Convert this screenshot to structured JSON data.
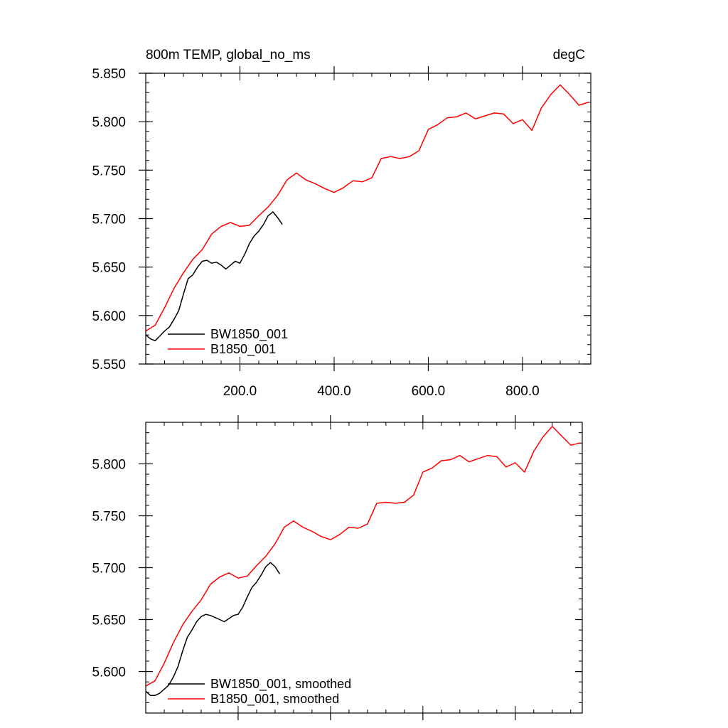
{
  "colors": {
    "bw": "#000000",
    "b": "#ff0000"
  },
  "chart_data": [
    {
      "type": "line",
      "title_left": "800m TEMP, global_no_ms",
      "title_right": "degC",
      "xlim": [
        0,
        945
      ],
      "ylim": [
        5.55,
        5.85
      ],
      "xticks": [
        200,
        400,
        600,
        800
      ],
      "xtick_labels": [
        "200.0",
        "400.0",
        "600.0",
        "800.0"
      ],
      "yticks": [
        5.55,
        5.6,
        5.65,
        5.7,
        5.75,
        5.8,
        5.85
      ],
      "ytick_labels": [
        "5.550",
        "5.600",
        "5.650",
        "5.700",
        "5.750",
        "5.800",
        "5.850"
      ],
      "legend_location": "lower-left",
      "series": [
        {
          "name": "BW1850_001",
          "color": "#000000",
          "x": [
            0,
            10,
            20,
            30,
            40,
            50,
            60,
            70,
            80,
            90,
            100,
            110,
            120,
            130,
            140,
            150,
            160,
            170,
            180,
            190,
            200,
            210,
            220,
            230,
            240,
            250,
            260,
            270,
            280,
            290
          ],
          "y": [
            5.58,
            5.576,
            5.574,
            5.579,
            5.584,
            5.588,
            5.596,
            5.605,
            5.622,
            5.638,
            5.642,
            5.65,
            5.656,
            5.657,
            5.654,
            5.655,
            5.652,
            5.648,
            5.652,
            5.656,
            5.654,
            5.663,
            5.674,
            5.682,
            5.687,
            5.694,
            5.703,
            5.707,
            5.701,
            5.694
          ]
        },
        {
          "name": "B1850_001",
          "color": "#ff0000",
          "x": [
            0,
            20,
            40,
            60,
            80,
            100,
            120,
            140,
            160,
            180,
            200,
            220,
            240,
            260,
            280,
            300,
            320,
            340,
            360,
            380,
            400,
            420,
            440,
            460,
            480,
            500,
            520,
            540,
            560,
            580,
            600,
            620,
            640,
            660,
            680,
            700,
            720,
            740,
            760,
            780,
            800,
            820,
            840,
            860,
            880,
            900,
            920,
            940
          ],
          "y": [
            5.584,
            5.59,
            5.608,
            5.628,
            5.644,
            5.658,
            5.668,
            5.684,
            5.692,
            5.696,
            5.692,
            5.693,
            5.703,
            5.712,
            5.724,
            5.74,
            5.747,
            5.74,
            5.736,
            5.731,
            5.727,
            5.732,
            5.739,
            5.738,
            5.742,
            5.762,
            5.764,
            5.762,
            5.764,
            5.77,
            5.792,
            5.797,
            5.804,
            5.805,
            5.809,
            5.803,
            5.806,
            5.809,
            5.808,
            5.798,
            5.802,
            5.791,
            5.814,
            5.828,
            5.838,
            5.828,
            5.817,
            5.82
          ]
        }
      ]
    },
    {
      "type": "line",
      "xlim": [
        0,
        945
      ],
      "ylim": [
        5.56,
        5.84
      ],
      "xticks": [
        200,
        400,
        600,
        800
      ],
      "yticks": [
        5.6,
        5.65,
        5.7,
        5.75,
        5.8
      ],
      "ytick_labels": [
        "5.600",
        "5.650",
        "5.700",
        "5.750",
        "5.800"
      ],
      "legend_location": "lower-left",
      "series": [
        {
          "name": "BW1850_001, smoothed",
          "color": "#000000",
          "x": [
            0,
            10,
            20,
            30,
            40,
            50,
            60,
            70,
            80,
            90,
            100,
            110,
            120,
            130,
            140,
            150,
            160,
            170,
            180,
            190,
            200,
            210,
            220,
            230,
            240,
            250,
            260,
            270,
            280,
            290
          ],
          "y": [
            5.581,
            5.577,
            5.577,
            5.579,
            5.583,
            5.587,
            5.595,
            5.605,
            5.62,
            5.633,
            5.64,
            5.648,
            5.653,
            5.655,
            5.654,
            5.652,
            5.65,
            5.648,
            5.651,
            5.654,
            5.655,
            5.662,
            5.672,
            5.681,
            5.686,
            5.693,
            5.701,
            5.705,
            5.701,
            5.694
          ]
        },
        {
          "name": "B1850_001, smoothed",
          "color": "#ff0000",
          "x": [
            0,
            20,
            40,
            60,
            80,
            100,
            120,
            140,
            160,
            180,
            200,
            220,
            240,
            260,
            280,
            300,
            320,
            340,
            360,
            380,
            400,
            420,
            440,
            460,
            480,
            500,
            520,
            540,
            560,
            580,
            600,
            620,
            640,
            660,
            680,
            700,
            720,
            740,
            760,
            780,
            800,
            820,
            840,
            860,
            880,
            900,
            920,
            940
          ],
          "y": [
            5.586,
            5.591,
            5.608,
            5.628,
            5.645,
            5.658,
            5.669,
            5.684,
            5.691,
            5.695,
            5.69,
            5.692,
            5.702,
            5.711,
            5.723,
            5.739,
            5.745,
            5.739,
            5.735,
            5.73,
            5.727,
            5.732,
            5.739,
            5.738,
            5.742,
            5.762,
            5.763,
            5.762,
            5.763,
            5.77,
            5.792,
            5.796,
            5.803,
            5.804,
            5.808,
            5.802,
            5.805,
            5.808,
            5.807,
            5.797,
            5.801,
            5.792,
            5.812,
            5.826,
            5.836,
            5.827,
            5.818,
            5.82
          ]
        }
      ]
    }
  ]
}
